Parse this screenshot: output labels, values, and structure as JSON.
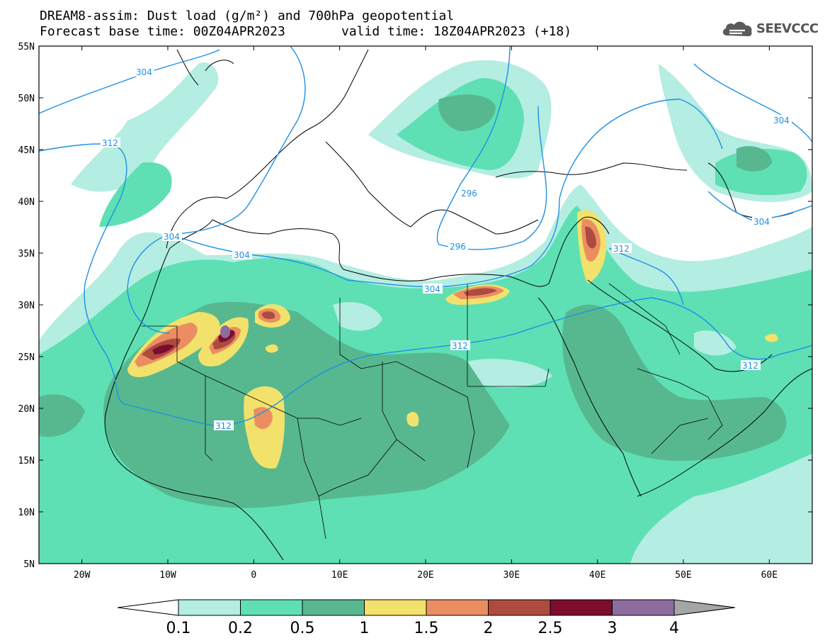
{
  "header": {
    "title_line1": "DREAM8-assim: Dust load (g/m²) and 700hPa geopotential",
    "title_line2": "Forecast base time: 00Z04APR2023",
    "valid_time": "valid time: 18Z04APR2023 (+18)",
    "logo_text": "SEEVCCC",
    "logo_icon": "cloud-logo-icon"
  },
  "map": {
    "lon_range": [
      -25,
      65
    ],
    "lat_range": [
      5,
      55
    ],
    "lat_ticks": [
      "55N",
      "50N",
      "45N",
      "40N",
      "35N",
      "30N",
      "25N",
      "20N",
      "15N",
      "10N",
      "5N"
    ],
    "lon_ticks": [
      "20W",
      "10W",
      "0",
      "10E",
      "20E",
      "30E",
      "40E",
      "50E",
      "60E"
    ],
    "contour_color": "#1e90e6",
    "contour_labels": [
      "304",
      "312",
      "304",
      "304",
      "304",
      "312",
      "312",
      "312",
      "296",
      "296",
      "304",
      "304",
      "312"
    ]
  },
  "colorbar": {
    "labels": [
      "0.1",
      "0.2",
      "0.5",
      "1",
      "1.5",
      "2",
      "2.5",
      "3",
      "4"
    ],
    "colors": [
      "#ffffff",
      "#b4ede1",
      "#5ee0b4",
      "#57b88f",
      "#f2e26b",
      "#ea8e62",
      "#ad4b3f",
      "#7d0d2d",
      "#8c6d9e",
      "#a6a6a6"
    ]
  },
  "legend_levels": {
    "dust_colors": {
      "l1": "#b4ede1",
      "l2": "#5ee0b4",
      "l3": "#57b88f",
      "l4": "#f2e26b",
      "l5": "#ea8e62",
      "l6": "#ad4b3f",
      "l7": "#7d0d2d",
      "l8": "#8c6d9e"
    }
  }
}
